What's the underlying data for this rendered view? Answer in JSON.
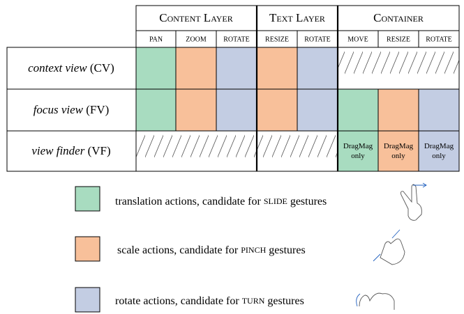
{
  "header": {
    "groups": [
      "Content Layer",
      "Text Layer",
      "Container"
    ],
    "columns": [
      "PAN",
      "ZOOM",
      "ROTATE",
      "RESIZE",
      "ROTATE",
      "MOVE",
      "RESIZE",
      "ROTATE"
    ]
  },
  "rows": [
    {
      "name": "context view",
      "abbr": "(CV)"
    },
    {
      "name": "focus view",
      "abbr": "(FV)"
    },
    {
      "name": "view finder",
      "abbr": "(VF)",
      "cells": [
        "DragMag only",
        "DragMag only",
        "DragMag only"
      ]
    }
  ],
  "legend": [
    {
      "text": "translation actions, candidate for",
      "keyword": "SLIDE",
      "suffix": "gestures"
    },
    {
      "text": "scale actions, candidate for",
      "keyword": "PINCH",
      "suffix": "gestures"
    },
    {
      "text": "rotate actions, candidate for",
      "keyword": "TURN",
      "suffix": "gestures"
    }
  ]
}
